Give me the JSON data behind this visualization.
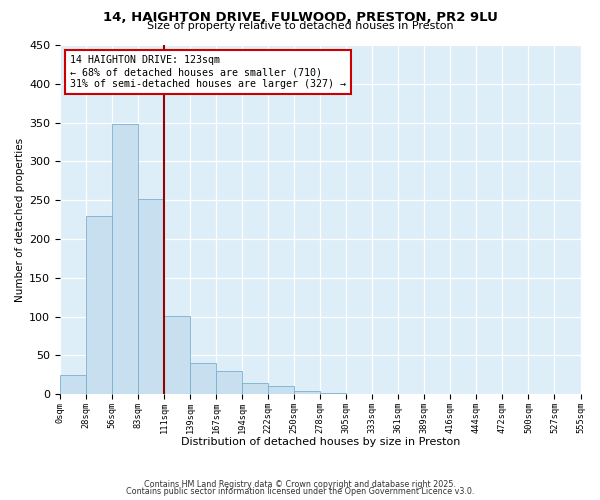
{
  "title": "14, HAIGHTON DRIVE, FULWOOD, PRESTON, PR2 9LU",
  "subtitle": "Size of property relative to detached houses in Preston",
  "xlabel": "Distribution of detached houses by size in Preston",
  "ylabel": "Number of detached properties",
  "bar_color": "#c8dff0",
  "bar_edge_color": "#7ab0d0",
  "background_color": "#ffffff",
  "grid_color": "#ddeef8",
  "annotation_text": "14 HAIGHTON DRIVE: 123sqm\n← 68% of detached houses are smaller (710)\n31% of semi-detached houses are larger (327) →",
  "vertical_line_color": "#990000",
  "tick_labels": [
    "0sqm",
    "28sqm",
    "56sqm",
    "83sqm",
    "111sqm",
    "139sqm",
    "167sqm",
    "194sqm",
    "222sqm",
    "250sqm",
    "278sqm",
    "305sqm",
    "333sqm",
    "361sqm",
    "389sqm",
    "416sqm",
    "444sqm",
    "472sqm",
    "500sqm",
    "527sqm",
    "555sqm"
  ],
  "bar_values": [
    25,
    230,
    348,
    252,
    101,
    40,
    30,
    15,
    10,
    4,
    1,
    0,
    0,
    0,
    0,
    0,
    0,
    0,
    0,
    0
  ],
  "ylim": [
    0,
    450
  ],
  "yticks": [
    0,
    50,
    100,
    150,
    200,
    250,
    300,
    350,
    400,
    450
  ],
  "footnote_line1": "Contains HM Land Registry data © Crown copyright and database right 2025.",
  "footnote_line2": "Contains public sector information licensed under the Open Government Licence v3.0."
}
